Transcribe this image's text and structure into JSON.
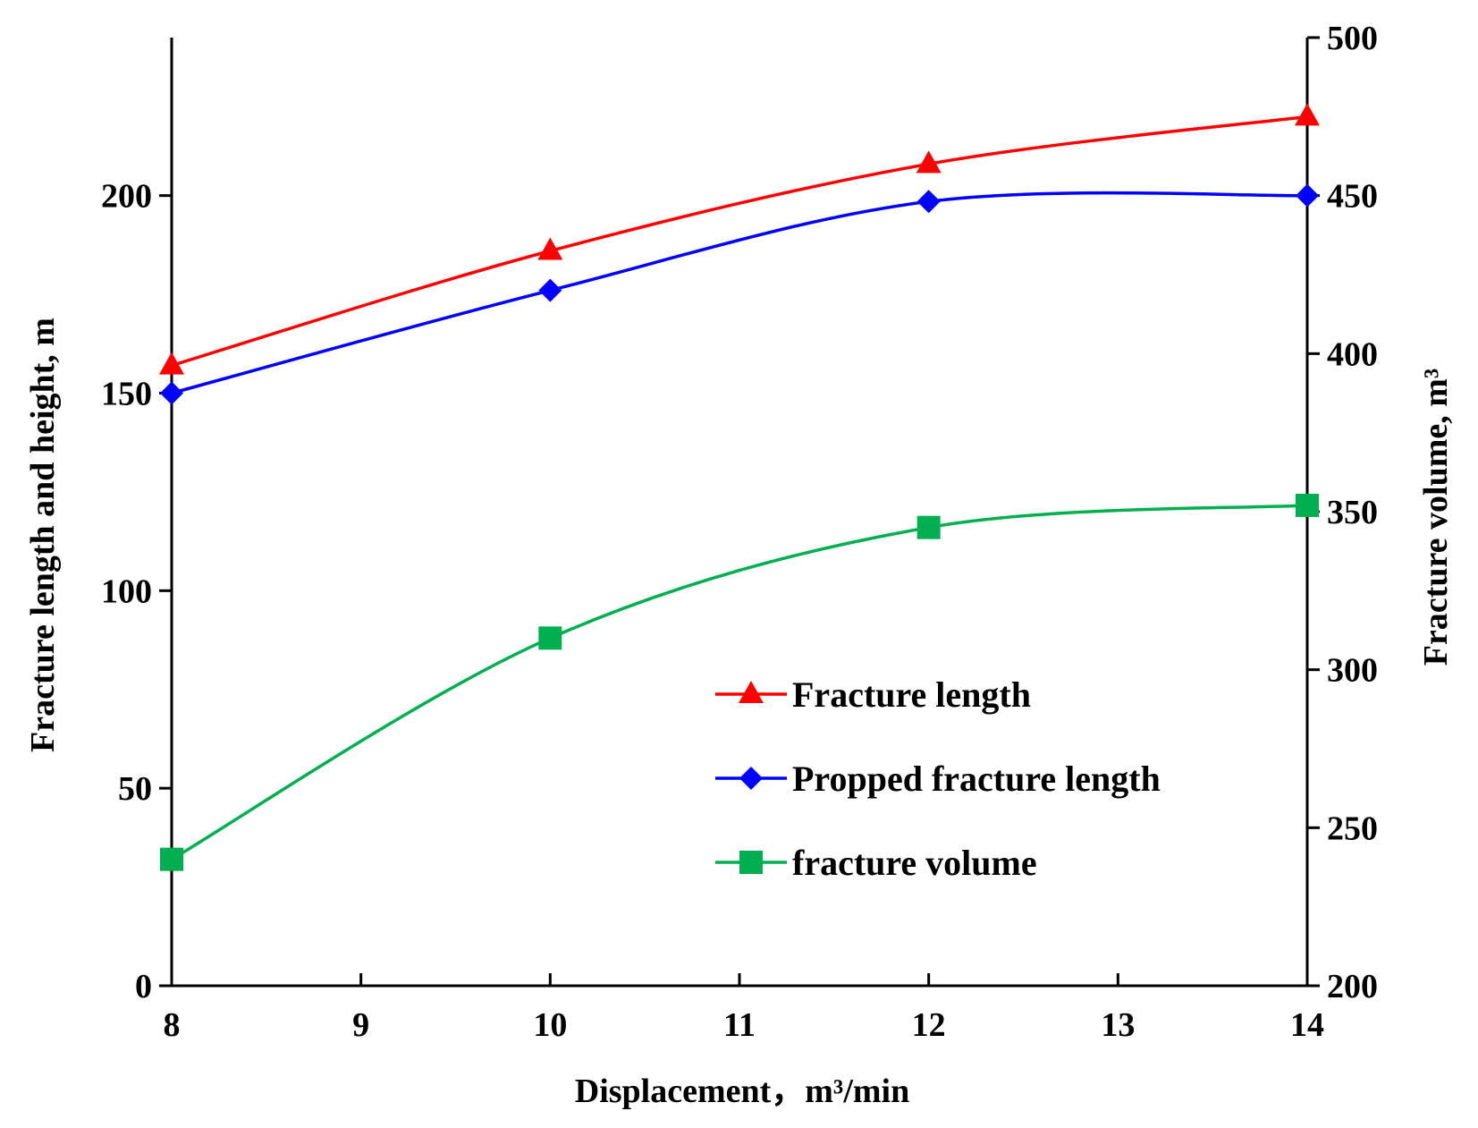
{
  "chart_data": {
    "type": "line",
    "title": "",
    "xlabel": "Displacement，m³/min",
    "ylabel_left": "Fracture length and height, m",
    "ylabel_right": "Fracture volume, m³",
    "xlim": [
      8,
      14
    ],
    "xticks": [
      8,
      9,
      10,
      11,
      12,
      13,
      14
    ],
    "ylim_left": [
      0,
      240
    ],
    "yticks_left": [
      0,
      50,
      100,
      150,
      200
    ],
    "ylim_right": [
      200,
      500
    ],
    "yticks_right": [
      200,
      250,
      300,
      350,
      400,
      450,
      500
    ],
    "grid": false,
    "legend_position": "center-right",
    "series": [
      {
        "name": "Fracture length",
        "axis": "left",
        "marker": "triangle",
        "color": "#ff0000",
        "x": [
          8,
          10,
          12,
          14
        ],
        "values": [
          157,
          186,
          208,
          220
        ]
      },
      {
        "name": "Propped fracture length",
        "axis": "left",
        "marker": "diamond",
        "color": "#0000ff",
        "x": [
          8,
          10,
          12,
          14
        ],
        "values": [
          150,
          176,
          198.5,
          200
        ]
      },
      {
        "name": "fracture volume",
        "axis": "right",
        "marker": "square",
        "color": "#00b050",
        "x": [
          8,
          10,
          12,
          14
        ],
        "values": [
          240,
          310,
          345,
          352
        ]
      }
    ]
  }
}
